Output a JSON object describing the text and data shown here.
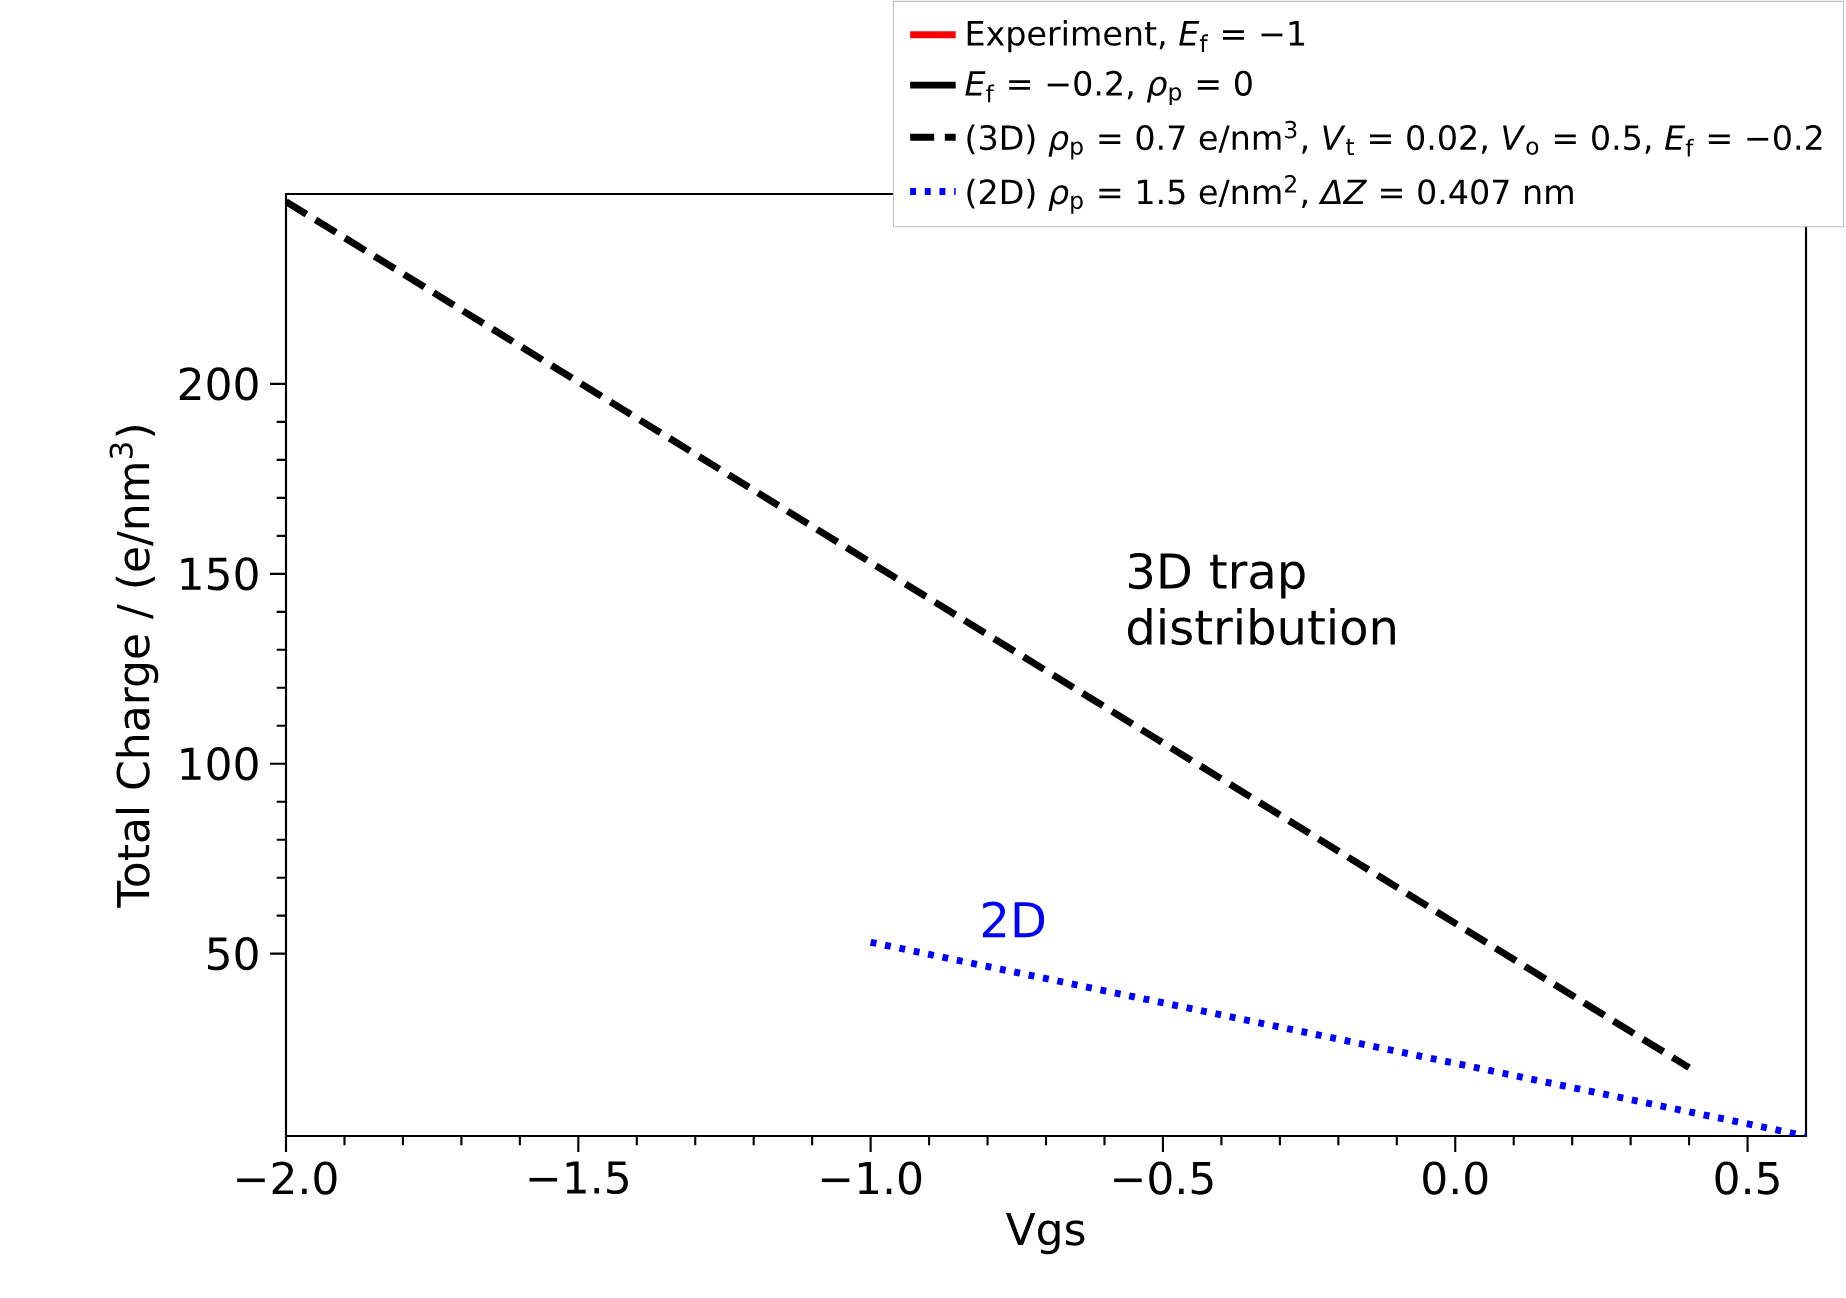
{
  "chart_data": {
    "type": "line",
    "xlabel": "Vgs",
    "ylabel": "Total Charge / (e/nm$^{3}$)",
    "xlim": [
      -2.0,
      0.6
    ],
    "ylim": [
      2,
      250
    ],
    "xticks": [
      {
        "value": -2.0,
        "label": "−2.0"
      },
      {
        "value": -1.5,
        "label": "−1.5"
      },
      {
        "value": -1.0,
        "label": "−1.0"
      },
      {
        "value": -0.5,
        "label": "−0.5"
      },
      {
        "value": 0.0,
        "label": "0.0"
      },
      {
        "value": 0.5,
        "label": "0.5"
      }
    ],
    "yticks": [
      50,
      100,
      150,
      200
    ],
    "grid": false,
    "legend": "top right",
    "series": [
      {
        "name": "Experiment, *E*$_{f}$ = −1",
        "color": "#ff0000",
        "line_style": "solid"
      },
      {
        "name": "*E*$_{f}$ = −0.2, *ρ*$_{p}$ = 0",
        "color": "#000000",
        "line_style": "solid"
      },
      {
        "name": "(3D) *ρ*$_{p}$ = 0.7 e/nm$^{3}$, *V*$_{t}$ = 0.02, *V*$_{o}$ = 0.5, *E*$_{f}$ = −0.2",
        "color": "#000000",
        "line_style": "dashed",
        "x": [
          -2.0,
          0.4
        ],
        "values": [
          248,
          20
        ]
      },
      {
        "name": "(2D) *ρ*$_{p}$ = 1.5 e/nm$^{2}$, *ΔZ* = 0.407 nm",
        "color": "#0000ff",
        "line_style": "dotted",
        "x": [
          -1.0,
          0.6
        ],
        "values": [
          53,
          2
        ]
      }
    ],
    "annotations": [
      "3D trap distribution",
      "2D"
    ]
  }
}
